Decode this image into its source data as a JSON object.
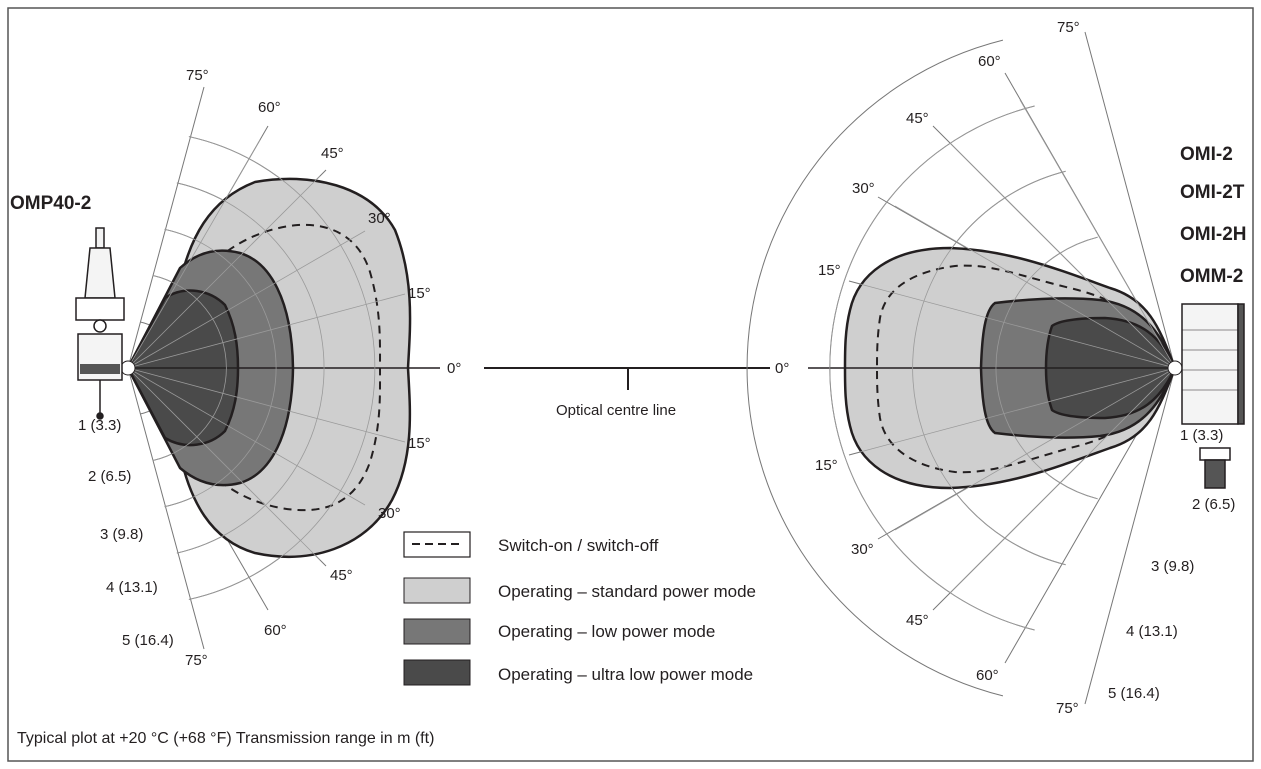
{
  "left_plot": {
    "device_label": "OMP40-2",
    "angle_labels_upper": [
      "75°",
      "60°",
      "45°",
      "30°",
      "15°",
      "0°"
    ],
    "angle_labels_lower": [
      "15°",
      "30°",
      "45°",
      "60°",
      "75°"
    ],
    "range_labels": [
      "1 (3.3)",
      "2 (6.5)",
      "3 (9.8)",
      "4 (13.1)",
      "5 (16.4)"
    ]
  },
  "right_plot": {
    "device_labels": [
      "OMI-2",
      "OMI-2T",
      "OMI-2H",
      "OMM-2"
    ],
    "angle_labels_upper": [
      "75°",
      "60°",
      "45°",
      "30°",
      "15°",
      "0°"
    ],
    "angle_labels_lower": [
      "15°",
      "30°",
      "45°",
      "60°",
      "75°"
    ],
    "range_labels": [
      "1 (3.3)",
      "2 (6.5)",
      "3 (9.8)",
      "4 (13.1)",
      "5 (16.4)"
    ]
  },
  "centre_line_label": "Optical centre line",
  "legend": [
    {
      "label": "Switch-on / switch-off",
      "style": "dashed",
      "color": "#ffffff"
    },
    {
      "label": "Operating – standard power mode",
      "style": "fill",
      "color": "#cfcfcf"
    },
    {
      "label": "Operating – low power mode",
      "style": "fill",
      "color": "#777777"
    },
    {
      "label": "Operating – ultra low power mode",
      "style": "fill",
      "color": "#4a4a4a"
    }
  ],
  "caption": "Typical plot at +20 °C (+68 °F) Transmission range in m (ft)"
}
